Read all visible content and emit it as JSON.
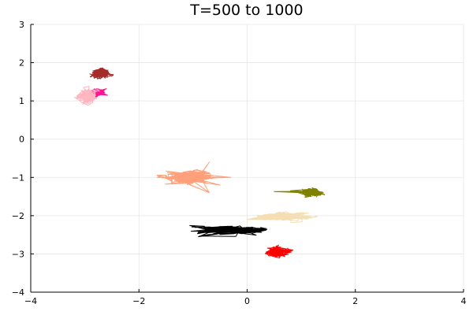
{
  "chart_data": {
    "type": "line",
    "title": "T=500 to 1000",
    "xlabel": "",
    "ylabel": "",
    "xlim": [
      -4,
      4
    ],
    "ylim": [
      -4,
      3
    ],
    "xticks": [
      -4,
      -2,
      0,
      2,
      4
    ],
    "yticks": [
      -4,
      -3,
      -2,
      -1,
      0,
      1,
      2,
      3
    ],
    "xtick_labels": [
      "−4",
      "−2",
      "0",
      "2",
      "4"
    ],
    "ytick_labels": [
      "−4",
      "−3",
      "−2",
      "−1",
      "0",
      "1",
      "2",
      "3"
    ],
    "grid": true,
    "legend": false,
    "series": [
      {
        "color": "#a52a2a",
        "center": [
          -2.7,
          1.72
        ],
        "spread": [
          0.13,
          0.1
        ],
        "extras": []
      },
      {
        "color": "#ff1493",
        "center": [
          -2.78,
          1.22
        ],
        "spread": [
          0.1,
          0.08
        ],
        "extras": [
          [
            -2.6,
            1.32
          ],
          [
            -2.58,
            1.15
          ]
        ]
      },
      {
        "color": "#ffb6c1",
        "center": [
          -2.95,
          1.12
        ],
        "spread": [
          0.13,
          0.14
        ],
        "extras": []
      },
      {
        "color": "#ffa07a",
        "center": [
          -1.1,
          -0.98
        ],
        "spread": [
          0.35,
          0.13
        ],
        "extras": [
          [
            -0.3,
            -1.0
          ],
          [
            -0.7,
            -1.4
          ],
          [
            -0.5,
            -1.2
          ],
          [
            -0.7,
            -0.6
          ]
        ]
      },
      {
        "color": "#808000",
        "center": [
          1.2,
          -1.4
        ],
        "spread": [
          0.14,
          0.08
        ],
        "extras": [
          [
            0.5,
            -1.37
          ],
          [
            0.8,
            -1.35
          ]
        ]
      },
      {
        "color": "#f5deb3",
        "center": [
          0.7,
          -2.02
        ],
        "spread": [
          0.38,
          0.08
        ],
        "extras": [
          [
            0.0,
            -2.1
          ]
        ]
      },
      {
        "color": "#000000",
        "center": [
          -0.35,
          -2.38
        ],
        "spread": [
          0.48,
          0.08
        ],
        "extras": [
          [
            -0.9,
            -2.55
          ],
          [
            0.35,
            -2.38
          ]
        ]
      },
      {
        "color": "#ff0000",
        "center": [
          0.55,
          -2.95
        ],
        "spread": [
          0.17,
          0.1
        ],
        "extras": [
          [
            0.85,
            -2.9
          ]
        ]
      }
    ]
  }
}
